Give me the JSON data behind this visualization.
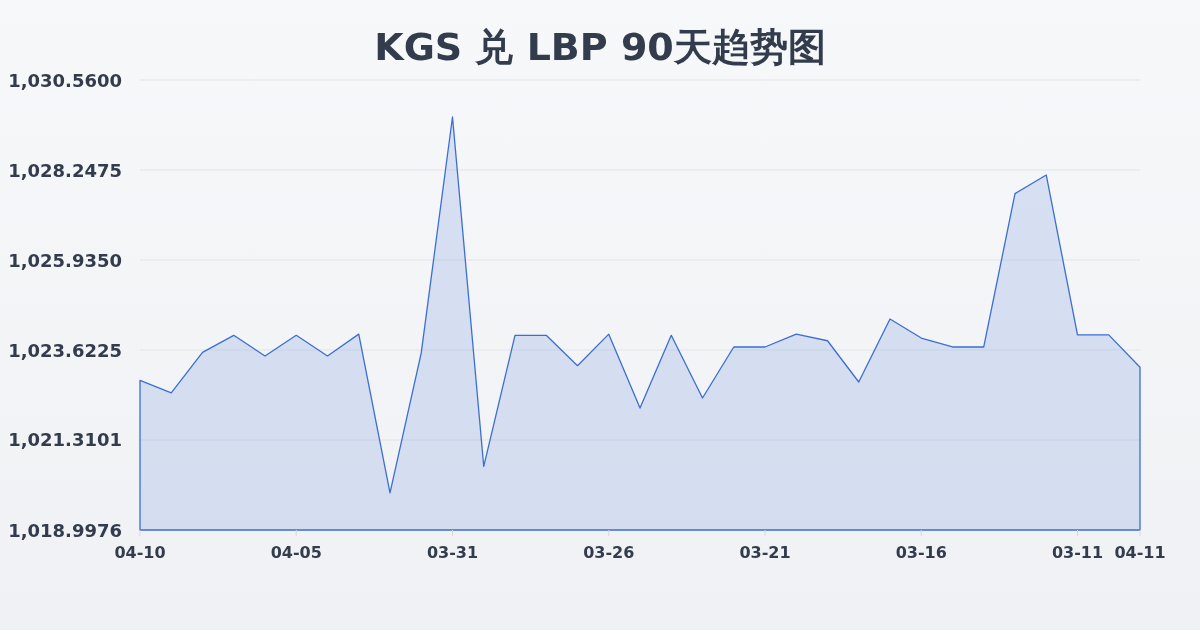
{
  "chart_data": {
    "type": "area",
    "title": "KGS 兑 LBP 90天趋势图",
    "categories": [
      "04-10",
      null,
      null,
      null,
      null,
      "04-05",
      null,
      null,
      null,
      null,
      "03-31",
      null,
      null,
      null,
      null,
      "03-26",
      null,
      null,
      null,
      null,
      "03-21",
      null,
      null,
      null,
      null,
      "03-16",
      null,
      null,
      null,
      null,
      "03-11",
      null,
      "04-11"
    ],
    "series": [
      {
        "color": "#3c6ed2",
        "values": [
          1022.84,
          1022.52,
          1023.56,
          1024.0,
          1023.47,
          1024.0,
          1023.47,
          1024.03,
          1019.95,
          1023.55,
          1029.61,
          1020.63,
          1024.0,
          1024.0,
          1023.22,
          1024.03,
          1022.13,
          1024.0,
          1022.39,
          1023.7,
          1023.7,
          1024.03,
          1023.86,
          1022.8,
          1024.42,
          1023.93,
          1023.7,
          1023.7,
          1027.64,
          1028.12,
          1024.01,
          1024.01,
          1023.18
        ]
      }
    ],
    "ylim": [
      1018.9976,
      1030.56
    ],
    "yticks": [
      {
        "value": 1018.9976,
        "label": "1,018.9976"
      },
      {
        "value": 1021.3101,
        "label": "1,021.3101"
      },
      {
        "value": 1023.6225,
        "label": "1,023.6225"
      },
      {
        "value": 1025.935,
        "label": "1,025.9350"
      },
      {
        "value": 1028.2475,
        "label": "1,028.2475"
      },
      {
        "value": 1030.56,
        "label": "1,030.5600"
      }
    ],
    "grid": "y"
  }
}
